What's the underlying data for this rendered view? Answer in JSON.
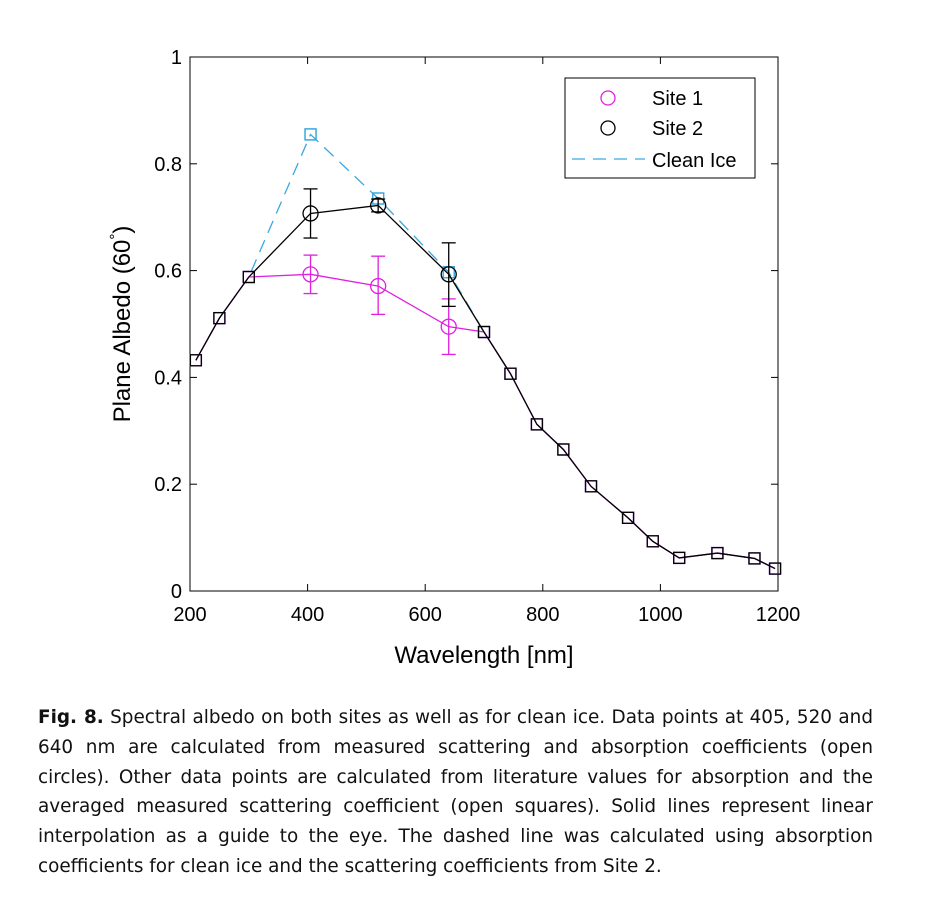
{
  "chart_data": {
    "type": "line",
    "title": "",
    "xlabel": "Wavelength [nm]",
    "ylabel": "Plane Albedo (60°)",
    "ylabel_main": "Plane Albedo (60",
    "ylabel_sup": "°",
    "ylabel_close": ")",
    "xlim": [
      200,
      1200
    ],
    "ylim": [
      0,
      1
    ],
    "xticks": [
      200,
      400,
      600,
      800,
      1000,
      1200
    ],
    "xtick_labels": [
      "200",
      "400",
      "600",
      "800",
      "1000",
      "1200"
    ],
    "yticks": [
      0,
      0.2,
      0.4,
      0.6,
      0.8,
      1
    ],
    "ytick_labels": [
      "0",
      "0.2",
      "0.4",
      "0.6",
      "0.8",
      "1"
    ],
    "grid": false,
    "legend_position": "top-right",
    "series": [
      {
        "name": "Site 1",
        "color": "#e020e0",
        "line": "solid",
        "x": [
          210,
          250,
          300,
          405,
          520,
          640,
          700,
          745,
          790,
          835,
          882,
          945,
          987,
          1032,
          1097,
          1160,
          1195
        ],
        "y": [
          0.432,
          0.511,
          0.588,
          0.593,
          0.571,
          0.495,
          0.485,
          0.407,
          0.312,
          0.265,
          0.196,
          0.137,
          0.093,
          0.062,
          0.071,
          0.061,
          0.042
        ],
        "circle_x": [
          405,
          520,
          640
        ],
        "circle_y": [
          0.593,
          0.571,
          0.495
        ],
        "err_low": [
          0.557,
          0.518,
          0.443
        ],
        "err_high": [
          0.629,
          0.627,
          0.547
        ]
      },
      {
        "name": "Site 2",
        "color": "#000000",
        "line": "solid",
        "x": [
          210,
          250,
          300,
          405,
          520,
          640,
          700,
          745,
          790,
          835,
          882,
          945,
          987,
          1032,
          1097,
          1160,
          1195
        ],
        "y": [
          0.432,
          0.511,
          0.588,
          0.707,
          0.722,
          0.593,
          0.485,
          0.407,
          0.312,
          0.265,
          0.196,
          0.137,
          0.093,
          0.062,
          0.071,
          0.061,
          0.042
        ],
        "circle_x": [
          405,
          520,
          640
        ],
        "circle_y": [
          0.707,
          0.722,
          0.593
        ],
        "err_low": [
          0.661,
          0.71,
          0.533
        ],
        "err_high": [
          0.753,
          0.734,
          0.652
        ]
      },
      {
        "name": "Clean Ice",
        "color": "#3aa7df",
        "line": "dashed",
        "x": [
          210,
          250,
          300,
          405,
          520,
          640,
          700,
          745,
          790,
          835,
          882,
          945,
          987,
          1032,
          1097,
          1160,
          1195
        ],
        "y": [
          0.432,
          0.511,
          0.588,
          0.855,
          0.735,
          0.597,
          0.485,
          0.407,
          0.312,
          0.265,
          0.196,
          0.137,
          0.093,
          0.062,
          0.071,
          0.061,
          0.042
        ]
      }
    ]
  },
  "caption": {
    "label": "Fig. 8.",
    "text": " Spectral albedo on both sites as well as for clean ice. Data points at 405, 520 and 640 nm are calculated from measured scattering and absorption coefficients (open circles). Other data points are calculated from literature values for absorption and the averaged measured scattering coefficient (open squares). Solid lines represent linear interpolation as a guide to the eye. The dashed line was calculated using absorption coefficients for clean ice and the scattering coefficients from Site 2."
  }
}
